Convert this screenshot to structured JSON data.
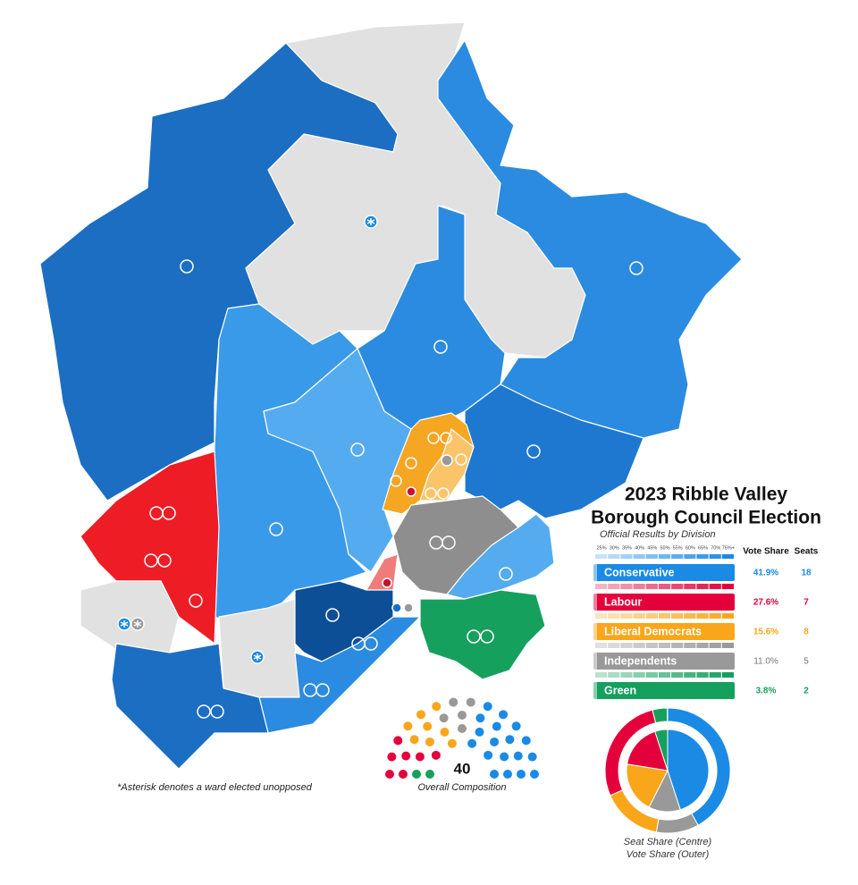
{
  "title_lines": [
    "2023 Ribble Valley",
    "Borough Council Election"
  ],
  "subtitle": "Official Results by Division",
  "scale_labels": [
    "25%",
    "30%",
    "35%",
    "40%",
    "45%",
    "50%",
    "55%",
    "60%",
    "65%",
    "70%",
    "75%+"
  ],
  "table": {
    "headers": [
      "Vote Share",
      "Seats"
    ],
    "parties": [
      {
        "name": "Conservative",
        "color": "#1a8ae5",
        "vote_share": 41.9,
        "vote_share_label": "41.9%",
        "seats": 18
      },
      {
        "name": "Labour",
        "color": "#e4003b",
        "vote_share": 27.6,
        "vote_share_label": "27.6%",
        "seats": 7
      },
      {
        "name": "Liberal Democrats",
        "color": "#faa61a",
        "vote_share": 15.6,
        "vote_share_label": "15.6%",
        "seats": 8
      },
      {
        "name": "Independents",
        "color": "#999999",
        "vote_share": 11.0,
        "vote_share_label": "11.0%",
        "seats": 5
      },
      {
        "name": "Green",
        "color": "#16a05d",
        "vote_share": 3.8,
        "vote_share_label": "3.8%",
        "seats": 2
      }
    ]
  },
  "composition": {
    "total": 40,
    "label": "Overall Composition"
  },
  "donut_labels": [
    "Seat Share (Centre)",
    "Vote Share (Outer)"
  ],
  "footnote": "*Asterisk denotes a ward elected unopposed"
}
